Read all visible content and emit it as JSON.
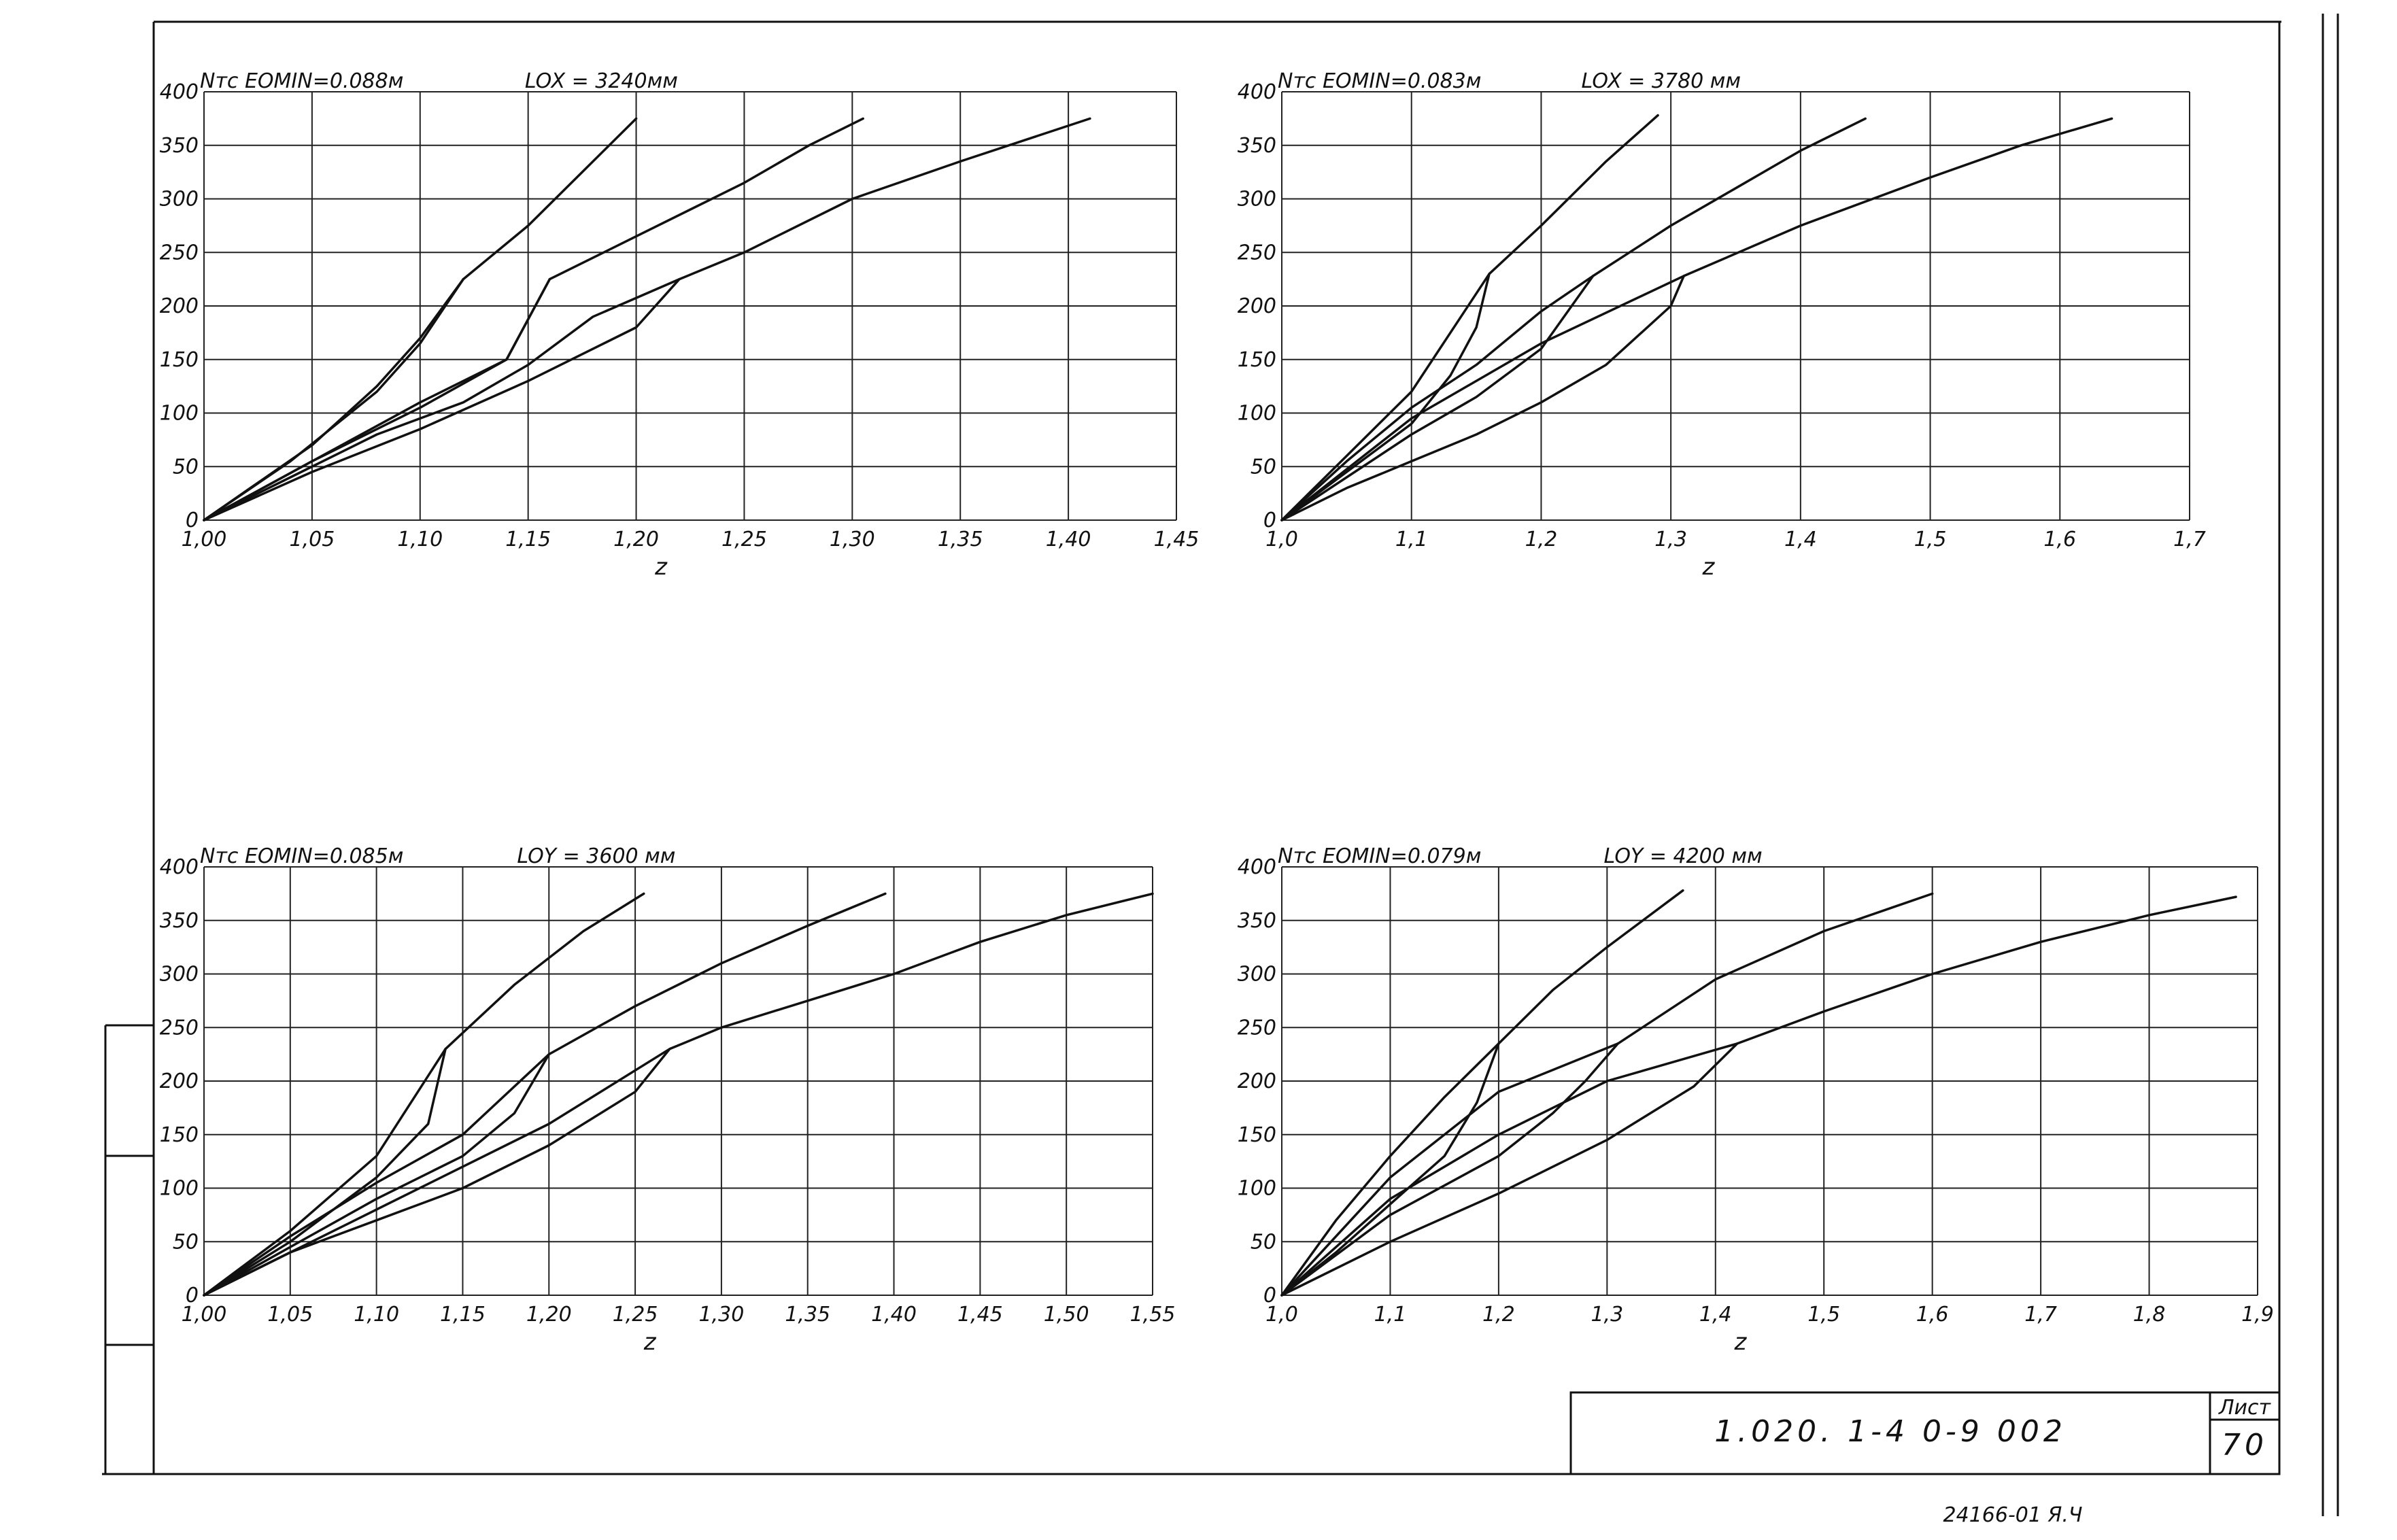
{
  "sheet": {
    "stamp_code": "1.020. 1-4   0-9   002",
    "sheet_label": "Лист",
    "sheet_number": "70",
    "bottom_code": "24166-01  Я.Ч"
  },
  "chart_data": [
    {
      "type": "line",
      "header_left": "Nтс  EOMIN=0.088м",
      "header_right": "LOX = 3240мм",
      "xlabel": "z",
      "ylabel": "Nтс",
      "xlim": [
        1.0,
        1.45
      ],
      "ylim": [
        0,
        400
      ],
      "x_ticks": [
        1.0,
        1.05,
        1.1,
        1.15,
        1.2,
        1.25,
        1.3,
        1.35,
        1.4,
        1.45
      ],
      "x_tick_labels": [
        "1,00",
        "1,05",
        "1,10",
        "1,15",
        "1,20",
        "1,25",
        "1,30",
        "1,35",
        "1,40",
        "1,45"
      ],
      "y_ticks": [
        0,
        50,
        100,
        150,
        200,
        250,
        300,
        350,
        400
      ],
      "y_tick_labels": [
        "0",
        "50",
        "100",
        "150",
        "200",
        "250",
        "300",
        "350",
        "400"
      ],
      "grid": true,
      "series": [
        {
          "points": [
            [
              1.0,
              0
            ],
            [
              1.05,
              70
            ],
            [
              1.08,
              125
            ],
            [
              1.1,
              170
            ],
            [
              1.12,
              225
            ],
            [
              1.15,
              275
            ],
            [
              1.2,
              375
            ]
          ]
        },
        {
          "points": [
            [
              1.0,
              0
            ],
            [
              1.05,
              55
            ],
            [
              1.1,
              105
            ],
            [
              1.14,
              150
            ],
            [
              1.16,
              225
            ],
            [
              1.2,
              265
            ],
            [
              1.25,
              315
            ],
            [
              1.28,
              350
            ],
            [
              1.305,
              375
            ]
          ]
        },
        {
          "points": [
            [
              1.0,
              0
            ],
            [
              1.05,
              45
            ],
            [
              1.1,
              85
            ],
            [
              1.15,
              130
            ],
            [
              1.2,
              180
            ],
            [
              1.22,
              225
            ],
            [
              1.25,
              250
            ],
            [
              1.3,
              300
            ],
            [
              1.35,
              335
            ],
            [
              1.41,
              375
            ]
          ]
        },
        {
          "points": [
            [
              1.0,
              0
            ],
            [
              1.04,
              40
            ],
            [
              1.08,
              80
            ],
            [
              1.12,
              110
            ],
            [
              1.15,
              145
            ],
            [
              1.18,
              190
            ],
            [
              1.22,
              225
            ]
          ]
        },
        {
          "points": [
            [
              1.0,
              0
            ],
            [
              1.04,
              55
            ],
            [
              1.08,
              120
            ],
            [
              1.1,
              165
            ],
            [
              1.12,
              225
            ]
          ]
        },
        {
          "points": [
            [
              1.0,
              0
            ],
            [
              1.05,
              55
            ],
            [
              1.1,
              110
            ],
            [
              1.14,
              150
            ],
            [
              1.16,
              225
            ]
          ]
        }
      ]
    },
    {
      "type": "line",
      "header_left": "Nтс  EOMIN=0.083м",
      "header_right": "LOX = 3780 мм",
      "xlabel": "z",
      "ylabel": "Nтс",
      "xlim": [
        1.0,
        1.7
      ],
      "ylim": [
        0,
        400
      ],
      "x_ticks": [
        1.0,
        1.1,
        1.2,
        1.3,
        1.4,
        1.5,
        1.6,
        1.7
      ],
      "x_tick_labels": [
        "1,0",
        "1,1",
        "1,2",
        "1,3",
        "1,4",
        "1,5",
        "1,6",
        "1,7"
      ],
      "y_ticks": [
        0,
        50,
        100,
        150,
        200,
        250,
        300,
        350,
        400
      ],
      "y_tick_labels": [
        "0",
        "50",
        "100",
        "150",
        "200",
        "250",
        "300",
        "350",
        "400"
      ],
      "grid": true,
      "series": [
        {
          "points": [
            [
              1.0,
              0
            ],
            [
              1.05,
              60
            ],
            [
              1.1,
              120
            ],
            [
              1.16,
              230
            ],
            [
              1.2,
              275
            ],
            [
              1.25,
              335
            ],
            [
              1.29,
              378
            ]
          ]
        },
        {
          "points": [
            [
              1.0,
              0
            ],
            [
              1.05,
              55
            ],
            [
              1.1,
              105
            ],
            [
              1.15,
              145
            ],
            [
              1.2,
              195
            ],
            [
              1.24,
              228
            ],
            [
              1.3,
              275
            ],
            [
              1.35,
              310
            ],
            [
              1.4,
              345
            ],
            [
              1.45,
              375
            ]
          ]
        },
        {
          "points": [
            [
              1.0,
              0
            ],
            [
              1.1,
              95
            ],
            [
              1.2,
              165
            ],
            [
              1.31,
              228
            ],
            [
              1.4,
              275
            ],
            [
              1.5,
              320
            ],
            [
              1.57,
              350
            ],
            [
              1.64,
              375
            ]
          ]
        },
        {
          "points": [
            [
              1.0,
              0
            ],
            [
              1.05,
              30
            ],
            [
              1.1,
              55
            ],
            [
              1.15,
              80
            ],
            [
              1.2,
              110
            ],
            [
              1.25,
              145
            ],
            [
              1.3,
              200
            ],
            [
              1.31,
              228
            ]
          ]
        },
        {
          "points": [
            [
              1.0,
              0
            ],
            [
              1.05,
              45
            ],
            [
              1.1,
              90
            ],
            [
              1.13,
              135
            ],
            [
              1.15,
              180
            ],
            [
              1.16,
              230
            ]
          ]
        },
        {
          "points": [
            [
              1.0,
              0
            ],
            [
              1.05,
              40
            ],
            [
              1.1,
              80
            ],
            [
              1.15,
              115
            ],
            [
              1.2,
              160
            ],
            [
              1.24,
              228
            ]
          ]
        }
      ]
    },
    {
      "type": "line",
      "header_left": "Nтс  EOMIN=0.085м",
      "header_right": "LOY = 3600 мм",
      "xlabel": "z",
      "ylabel": "Nтс",
      "xlim": [
        1.0,
        1.55
      ],
      "ylim": [
        0,
        400
      ],
      "x_ticks": [
        1.0,
        1.05,
        1.1,
        1.15,
        1.2,
        1.25,
        1.3,
        1.35,
        1.4,
        1.45,
        1.5,
        1.55
      ],
      "x_tick_labels": [
        "1,00",
        "1,05",
        "1,10",
        "1,15",
        "1,20",
        "1,25",
        "1,30",
        "1,35",
        "1,40",
        "1,45",
        "1,50",
        "1,55"
      ],
      "y_ticks": [
        0,
        50,
        100,
        150,
        200,
        250,
        300,
        350,
        400
      ],
      "y_tick_labels": [
        "0",
        "50",
        "100",
        "150",
        "200",
        "250",
        "300",
        "350",
        "400"
      ],
      "grid": true,
      "series": [
        {
          "points": [
            [
              1.0,
              0
            ],
            [
              1.05,
              60
            ],
            [
              1.1,
              130
            ],
            [
              1.14,
              230
            ],
            [
              1.18,
              290
            ],
            [
              1.22,
              340
            ],
            [
              1.255,
              375
            ]
          ]
        },
        {
          "points": [
            [
              1.0,
              0
            ],
            [
              1.05,
              55
            ],
            [
              1.1,
              105
            ],
            [
              1.15,
              150
            ],
            [
              1.2,
              225
            ],
            [
              1.25,
              270
            ],
            [
              1.3,
              310
            ],
            [
              1.35,
              345
            ],
            [
              1.395,
              375
            ]
          ]
        },
        {
          "points": [
            [
              1.0,
              0
            ],
            [
              1.1,
              80
            ],
            [
              1.2,
              160
            ],
            [
              1.27,
              230
            ],
            [
              1.3,
              250
            ],
            [
              1.35,
              275
            ],
            [
              1.4,
              300
            ],
            [
              1.45,
              330
            ],
            [
              1.5,
              355
            ],
            [
              1.55,
              375
            ]
          ]
        },
        {
          "points": [
            [
              1.0,
              0
            ],
            [
              1.05,
              40
            ],
            [
              1.1,
              70
            ],
            [
              1.15,
              100
            ],
            [
              1.2,
              140
            ],
            [
              1.25,
              190
            ],
            [
              1.27,
              230
            ]
          ]
        },
        {
          "points": [
            [
              1.0,
              0
            ],
            [
              1.05,
              50
            ],
            [
              1.1,
              110
            ],
            [
              1.13,
              160
            ],
            [
              1.14,
              230
            ]
          ]
        },
        {
          "points": [
            [
              1.0,
              0
            ],
            [
              1.05,
              45
            ],
            [
              1.1,
              90
            ],
            [
              1.15,
              130
            ],
            [
              1.18,
              170
            ],
            [
              1.2,
              225
            ]
          ]
        }
      ]
    },
    {
      "type": "line",
      "header_left": "Nтс  EOMIN=0.079м",
      "header_right": "LOY = 4200 мм",
      "xlabel": "z",
      "ylabel": "Nтс",
      "xlim": [
        1.0,
        1.9
      ],
      "ylim": [
        0,
        400
      ],
      "x_ticks": [
        1.0,
        1.1,
        1.2,
        1.3,
        1.4,
        1.5,
        1.6,
        1.7,
        1.8,
        1.9
      ],
      "x_tick_labels": [
        "1,0",
        "1,1",
        "1,2",
        "1,3",
        "1,4",
        "1,5",
        "1,6",
        "1,7",
        "1,8",
        "1,9"
      ],
      "y_ticks": [
        0,
        50,
        100,
        150,
        200,
        250,
        300,
        350,
        400
      ],
      "y_tick_labels": [
        "0",
        "50",
        "100",
        "150",
        "200",
        "250",
        "300",
        "350",
        "400"
      ],
      "grid": true,
      "series": [
        {
          "points": [
            [
              1.0,
              0
            ],
            [
              1.05,
              70
            ],
            [
              1.1,
              130
            ],
            [
              1.15,
              185
            ],
            [
              1.2,
              235
            ],
            [
              1.25,
              285
            ],
            [
              1.3,
              325
            ],
            [
              1.37,
              378
            ]
          ]
        },
        {
          "points": [
            [
              1.0,
              0
            ],
            [
              1.1,
              110
            ],
            [
              1.2,
              190
            ],
            [
              1.31,
              235
            ],
            [
              1.4,
              295
            ],
            [
              1.5,
              340
            ],
            [
              1.6,
              375
            ]
          ]
        },
        {
          "points": [
            [
              1.0,
              0
            ],
            [
              1.1,
              90
            ],
            [
              1.2,
              150
            ],
            [
              1.3,
              200
            ],
            [
              1.42,
              235
            ],
            [
              1.5,
              265
            ],
            [
              1.6,
              300
            ],
            [
              1.7,
              330
            ],
            [
              1.8,
              355
            ],
            [
              1.88,
              372
            ]
          ]
        },
        {
          "points": [
            [
              1.0,
              0
            ],
            [
              1.1,
              50
            ],
            [
              1.2,
              95
            ],
            [
              1.3,
              145
            ],
            [
              1.38,
              195
            ],
            [
              1.42,
              235
            ]
          ]
        },
        {
          "points": [
            [
              1.0,
              0
            ],
            [
              1.05,
              40
            ],
            [
              1.1,
              85
            ],
            [
              1.15,
              130
            ],
            [
              1.18,
              180
            ],
            [
              1.2,
              235
            ]
          ]
        },
        {
          "points": [
            [
              1.0,
              0
            ],
            [
              1.1,
              75
            ],
            [
              1.2,
              130
            ],
            [
              1.25,
              170
            ],
            [
              1.28,
              200
            ],
            [
              1.31,
              235
            ]
          ]
        }
      ]
    }
  ]
}
